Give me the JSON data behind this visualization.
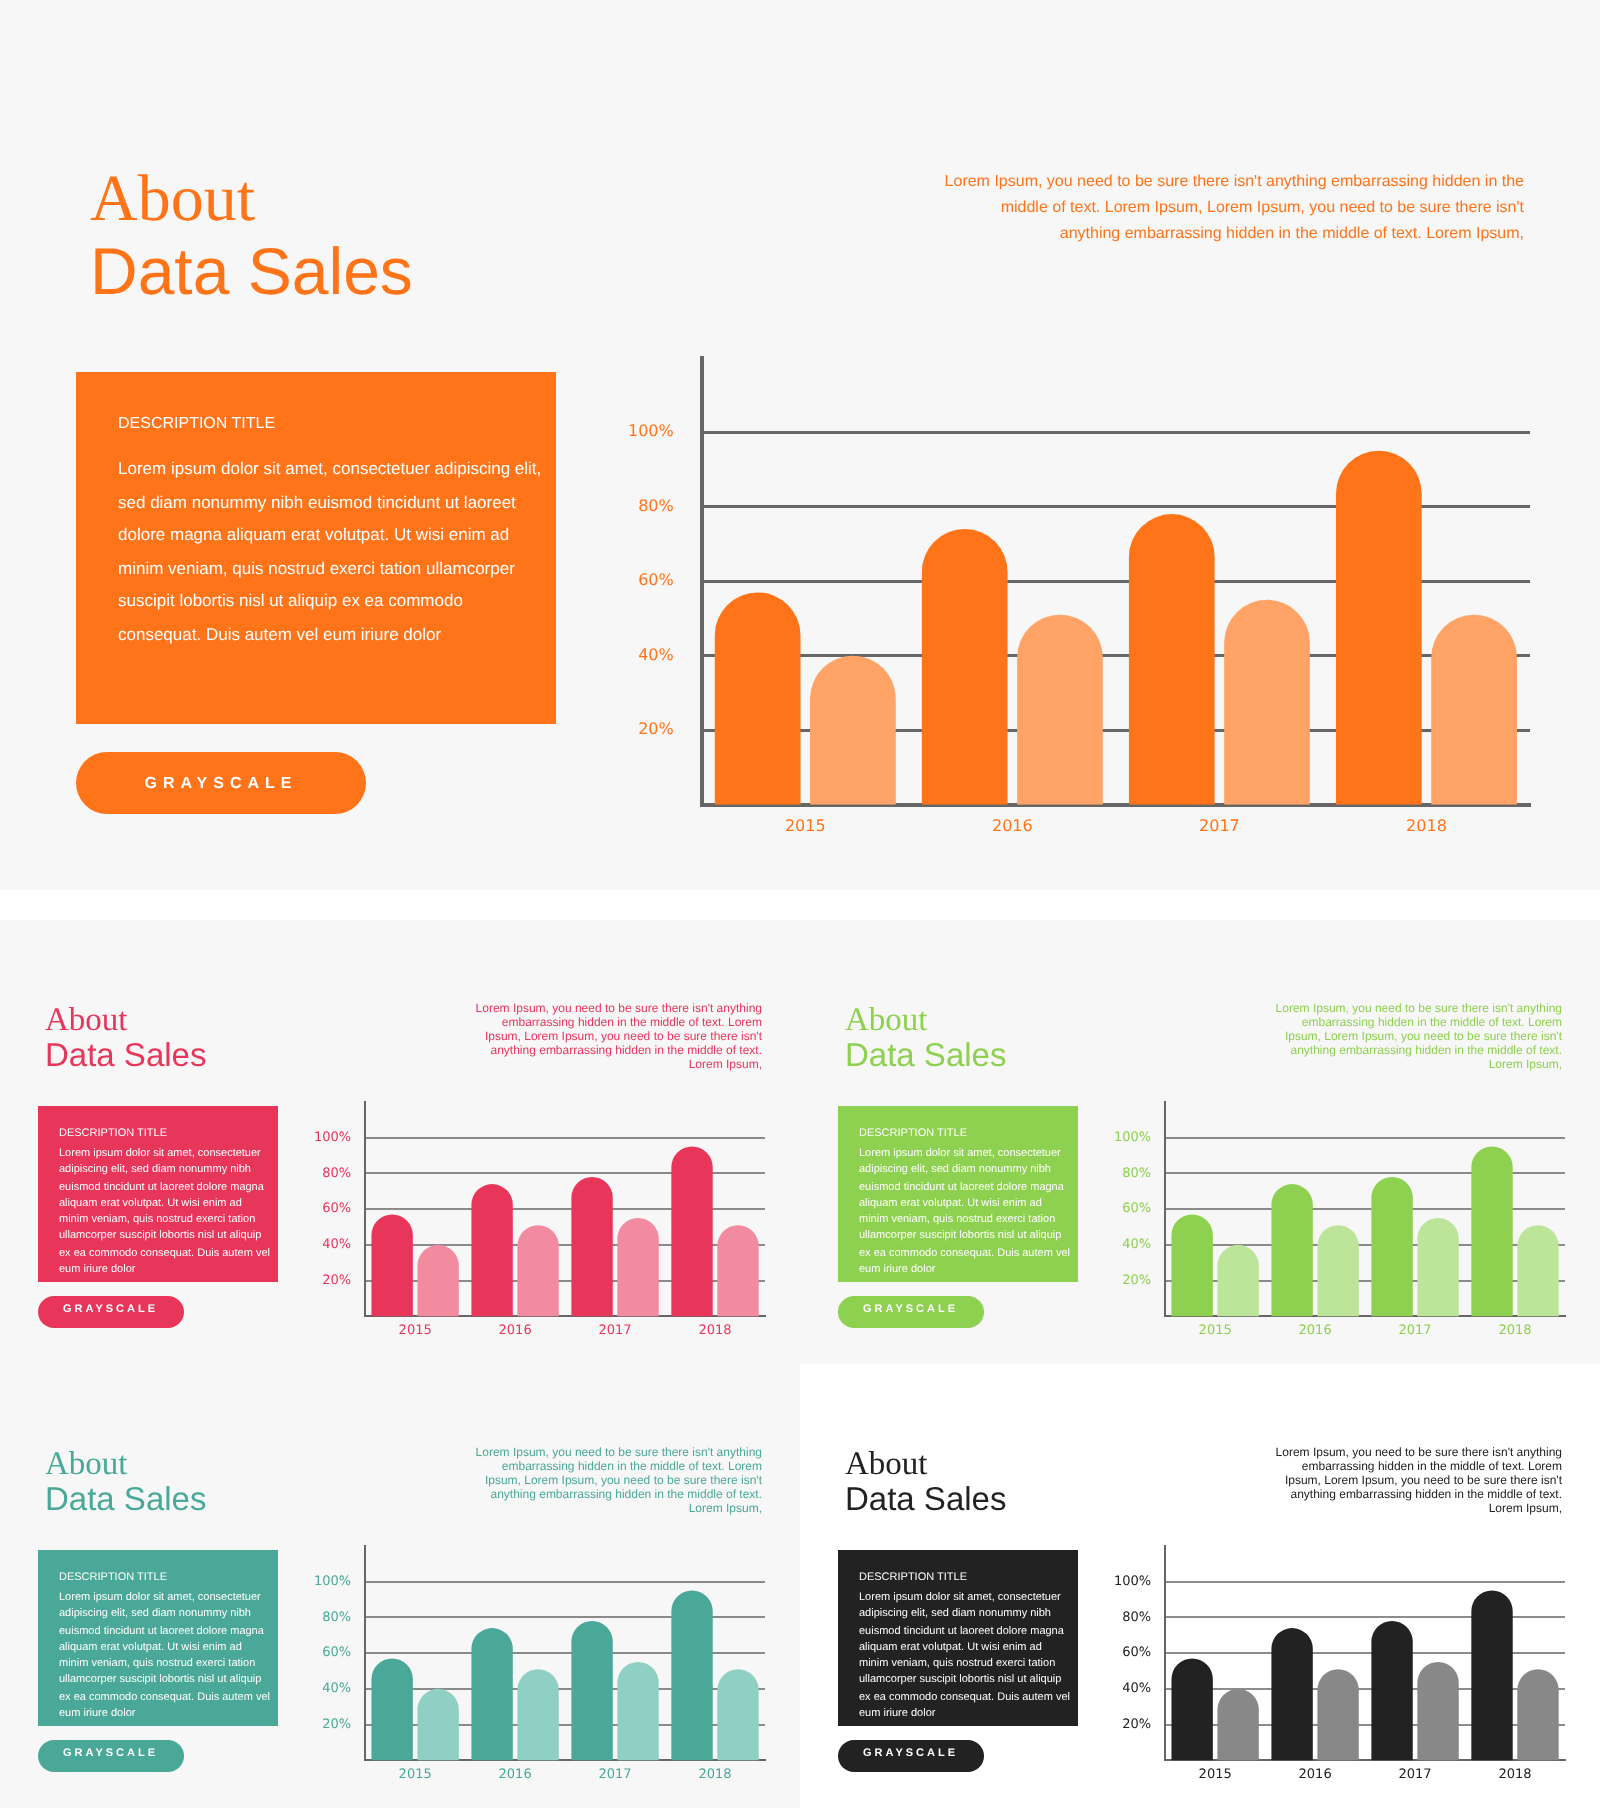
{
  "chart_data": [
    {
      "type": "bar",
      "title": "About\nData Sales",
      "annotations": [
        "Lorem  Ipsum, you need to be sure there  isn't anything embarrassing hidden in the middle of text.  Lorem  Ipsum, Lorem  Ipsum, you need to be sure there  isn't anything embarrassing hidden in the middle of text.  Lorem  Ipsum,",
        "DESCRIPTION TITLE",
        "Lorem  ipsum dolor sit amet, consectetuer  adipiscing elit, sed diam nonummy  nibh euismod tincidunt ut laoreet dolore magna  aliquam erat volutpat. Ut  wisi enim ad minim veniam,  quis nostrud exerci tation  ullamcorper suscipit lobortis nisl ut aliquip ex ea commodo consequat.  Duis autem vel eum  iriure dolor",
        "GRAYSCALE"
      ],
      "categories": [
        "2015",
        "2016",
        "2017",
        "2018"
      ],
      "series": [
        {
          "color": "#ff7418",
          "values": [
            57,
            74,
            78,
            95
          ]
        },
        {
          "color": "#ffa466",
          "values": [
            40,
            51,
            55,
            51
          ]
        }
      ],
      "ylim": [
        0,
        120
      ],
      "yticks": [
        {
          "value": 20,
          "label": "20%"
        },
        {
          "value": 40,
          "label": "40%"
        },
        {
          "value": 60,
          "label": "60%"
        },
        {
          "value": 80,
          "label": "80%"
        },
        {
          "value": 100,
          "label": "100%"
        }
      ],
      "grid": "y"
    },
    {
      "type": "bar",
      "title": "About\nData Sales",
      "annotations": [
        "Lorem  Ipsum, you need to be sure there  isn't anything embarrassing hidden in the middle of text.  Lorem  Ipsum, Lorem  Ipsum, you need to be sure there  isn't anything embarrassing hidden in the middle of text.  Lorem  Ipsum,",
        "DESCRIPTION TITLE",
        "Lorem  ipsum dolor sit amet, consectetuer  adipiscing elit, sed diam nonummy  nibh euismod tincidunt ut laoreet dolore magna  aliquam erat volutpat. Ut  wisi enim ad minim veniam,  quis nostrud exerci tation  ullamcorper suscipit lobortis nisl ut aliquip ex ea commodo consequat.  Duis autem vel eum  iriure dolor",
        "GRAYSCALE"
      ],
      "categories": [
        "2015",
        "2016",
        "2017",
        "2018"
      ],
      "series": [
        {
          "color": "#e8365a",
          "values": [
            57,
            74,
            78,
            95
          ]
        },
        {
          "color": "#f28aa0",
          "values": [
            40,
            51,
            55,
            51
          ]
        }
      ],
      "ylim": [
        0,
        120
      ],
      "yticks": [
        {
          "value": 20,
          "label": "20%"
        },
        {
          "value": 40,
          "label": "40%"
        },
        {
          "value": 60,
          "label": "60%"
        },
        {
          "value": 80,
          "label": "80%"
        },
        {
          "value": 100,
          "label": "100%"
        }
      ],
      "grid": "y"
    },
    {
      "type": "bar",
      "title": "About\nData Sales",
      "annotations": [
        "Lorem  Ipsum, you need to be sure there  isn't anything embarrassing hidden in the middle of text.  Lorem  Ipsum, Lorem  Ipsum, you need to be sure there  isn't anything embarrassing hidden in the middle of text.  Lorem  Ipsum,",
        "DESCRIPTION TITLE",
        "Lorem  ipsum dolor sit amet, consectetuer  adipiscing elit, sed diam nonummy  nibh euismod tincidunt ut laoreet dolore magna  aliquam erat volutpat. Ut  wisi enim ad minim veniam,  quis nostrud exerci tation  ullamcorper suscipit lobortis nisl ut aliquip ex ea commodo consequat.  Duis autem vel eum  iriure dolor",
        "GRAYSCALE"
      ],
      "categories": [
        "2015",
        "2016",
        "2017",
        "2018"
      ],
      "series": [
        {
          "color": "#8ed04f",
          "values": [
            57,
            74,
            78,
            95
          ]
        },
        {
          "color": "#bce59a",
          "values": [
            40,
            51,
            55,
            51
          ]
        }
      ],
      "ylim": [
        0,
        120
      ],
      "yticks": [
        {
          "value": 20,
          "label": "20%"
        },
        {
          "value": 40,
          "label": "40%"
        },
        {
          "value": 60,
          "label": "60%"
        },
        {
          "value": 80,
          "label": "80%"
        },
        {
          "value": 100,
          "label": "100%"
        }
      ],
      "grid": "y"
    },
    {
      "type": "bar",
      "title": "About\nData Sales",
      "annotations": [
        "Lorem  Ipsum, you need to be sure there  isn't anything embarrassing hidden in the middle of text.  Lorem  Ipsum, Lorem  Ipsum, you need to be sure there  isn't anything embarrassing hidden in the middle of text.  Lorem  Ipsum,",
        "DESCRIPTION TITLE",
        "Lorem  ipsum dolor sit amet, consectetuer  adipiscing elit, sed diam nonummy  nibh euismod tincidunt ut laoreet dolore magna  aliquam erat volutpat. Ut  wisi enim ad minim veniam,  quis nostrud exerci tation  ullamcorper suscipit lobortis nisl ut aliquip ex ea commodo consequat.  Duis autem vel eum  iriure dolor",
        "GRAYSCALE"
      ],
      "categories": [
        "2015",
        "2016",
        "2017",
        "2018"
      ],
      "series": [
        {
          "color": "#4aa898",
          "values": [
            57,
            74,
            78,
            95
          ]
        },
        {
          "color": "#90cfc3",
          "values": [
            40,
            51,
            55,
            51
          ]
        }
      ],
      "ylim": [
        0,
        120
      ],
      "yticks": [
        {
          "value": 20,
          "label": "20%"
        },
        {
          "value": 40,
          "label": "40%"
        },
        {
          "value": 60,
          "label": "60%"
        },
        {
          "value": 80,
          "label": "80%"
        },
        {
          "value": 100,
          "label": "100%"
        }
      ],
      "grid": "y"
    },
    {
      "type": "bar",
      "title": "About\nData Sales",
      "annotations": [
        "Lorem  Ipsum, you need to be sure there  isn't anything embarrassing hidden in the middle of text.  Lorem  Ipsum, Lorem  Ipsum, you need to be sure there  isn't anything embarrassing hidden in the middle of text.  Lorem  Ipsum,",
        "DESCRIPTION TITLE",
        "Lorem  ipsum dolor sit amet, consectetuer  adipiscing elit, sed diam nonummy  nibh euismod tincidunt ut laoreet dolore magna  aliquam erat volutpat. Ut  wisi enim ad minim veniam,  quis nostrud exerci tation  ullamcorper suscipit lobortis nisl ut aliquip ex ea commodo consequat.  Duis autem vel eum  iriure dolor",
        "GRAYSCALE"
      ],
      "categories": [
        "2015",
        "2016",
        "2017",
        "2018"
      ],
      "series": [
        {
          "color": "#222222",
          "values": [
            57,
            74,
            78,
            95
          ]
        },
        {
          "color": "#888888",
          "values": [
            40,
            51,
            55,
            51
          ]
        }
      ],
      "ylim": [
        0,
        120
      ],
      "yticks": [
        {
          "value": 20,
          "label": "20%"
        },
        {
          "value": 40,
          "label": "40%"
        },
        {
          "value": 60,
          "label": "60%"
        },
        {
          "value": 80,
          "label": "80%"
        },
        {
          "value": 100,
          "label": "100%"
        }
      ],
      "grid": "y"
    }
  ]
}
